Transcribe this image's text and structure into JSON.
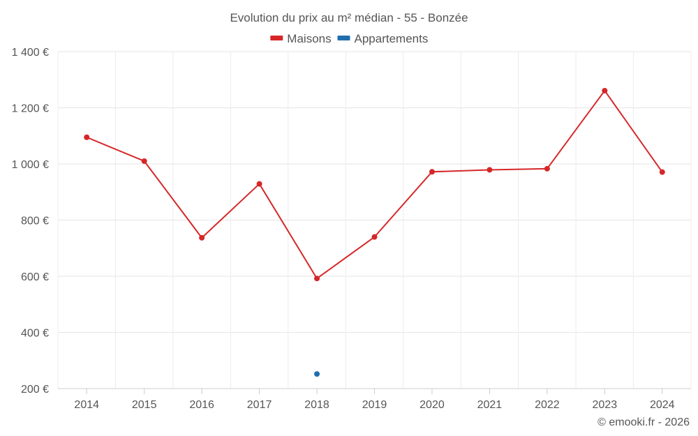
{
  "chart_data": {
    "type": "line",
    "title": "Evolution du prix au m² médian - 55 - Bonzée",
    "categories": [
      "2014",
      "2015",
      "2016",
      "2017",
      "2018",
      "2019",
      "2020",
      "2021",
      "2022",
      "2023",
      "2024"
    ],
    "series": [
      {
        "name": "Maisons",
        "color": "#d62728",
        "values": [
          1095,
          1010,
          737,
          929,
          592,
          740,
          972,
          979,
          983,
          1261,
          971
        ]
      },
      {
        "name": "Appartements",
        "color": "#1f6fae",
        "values": [
          null,
          null,
          null,
          null,
          252,
          null,
          null,
          null,
          null,
          null,
          null
        ]
      }
    ],
    "ylim": [
      200,
      1400
    ],
    "yticks": [
      200,
      400,
      600,
      800,
      1000,
      1200,
      1400
    ],
    "y_tick_labels": [
      "200 €",
      "400 €",
      "600 €",
      "800 €",
      "1 000 €",
      "1 200 €",
      "1 400 €"
    ],
    "xlabel": "",
    "ylabel": "",
    "grid": true,
    "legend": "top-center"
  },
  "footer": {
    "credit": "© emooki.fr - 2026"
  }
}
